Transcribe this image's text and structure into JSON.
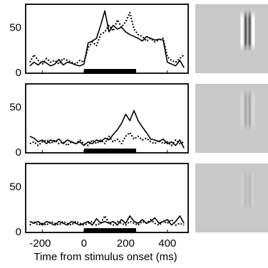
{
  "chart_data": [
    {
      "type": "line",
      "xlabel": "",
      "x_ticks": [
        -200,
        0,
        200,
        400
      ],
      "xlim": [
        -280,
        500
      ],
      "ylim": [
        0,
        75
      ],
      "y_ticks": [
        0,
        50
      ],
      "y_tick_labels": [
        "0",
        "50"
      ],
      "stimulus_bar": [
        0,
        250
      ],
      "series": [
        {
          "style": "solid",
          "points": [
            [
              -260,
              8
            ],
            [
              -240,
              12
            ],
            [
              -220,
              9
            ],
            [
              -200,
              13
            ],
            [
              -180,
              11
            ],
            [
              -160,
              8
            ],
            [
              -140,
              10
            ],
            [
              -120,
              15
            ],
            [
              -100,
              9
            ],
            [
              -80,
              12
            ],
            [
              -60,
              11
            ],
            [
              -40,
              9
            ],
            [
              -20,
              8
            ],
            [
              0,
              10
            ],
            [
              20,
              33
            ],
            [
              40,
              35
            ],
            [
              60,
              38
            ],
            [
              80,
              52
            ],
            [
              100,
              68
            ],
            [
              120,
              45
            ],
            [
              140,
              52
            ],
            [
              160,
              48
            ],
            [
              180,
              50
            ],
            [
              200,
              45
            ],
            [
              220,
              42
            ],
            [
              240,
              40
            ],
            [
              260,
              38
            ],
            [
              280,
              35
            ],
            [
              300,
              40
            ],
            [
              320,
              38
            ],
            [
              340,
              36
            ],
            [
              360,
              37
            ],
            [
              380,
              36
            ],
            [
              400,
              12
            ],
            [
              420,
              10
            ],
            [
              440,
              8
            ],
            [
              460,
              14
            ],
            [
              480,
              6
            ]
          ]
        },
        {
          "style": "dotted",
          "points": [
            [
              -260,
              12
            ],
            [
              -240,
              20
            ],
            [
              -220,
              14
            ],
            [
              -200,
              10
            ],
            [
              -180,
              16
            ],
            [
              -160,
              12
            ],
            [
              -140,
              14
            ],
            [
              -120,
              10
            ],
            [
              -100,
              16
            ],
            [
              -80,
              14
            ],
            [
              -60,
              12
            ],
            [
              -40,
              10
            ],
            [
              -20,
              14
            ],
            [
              0,
              12
            ],
            [
              20,
              28
            ],
            [
              40,
              34
            ],
            [
              60,
              30
            ],
            [
              80,
              42
            ],
            [
              100,
              45
            ],
            [
              120,
              52
            ],
            [
              140,
              46
            ],
            [
              160,
              58
            ],
            [
              180,
              50
            ],
            [
              200,
              56
            ],
            [
              220,
              66
            ],
            [
              240,
              48
            ],
            [
              260,
              42
            ],
            [
              280,
              40
            ],
            [
              300,
              35
            ],
            [
              320,
              38
            ],
            [
              340,
              34
            ],
            [
              360,
              36
            ],
            [
              380,
              38
            ],
            [
              400,
              18
            ],
            [
              420,
              14
            ],
            [
              440,
              12
            ],
            [
              460,
              16
            ],
            [
              480,
              20
            ]
          ]
        }
      ]
    },
    {
      "type": "line",
      "xlabel": "",
      "x_ticks": [
        -200,
        0,
        200,
        400
      ],
      "xlim": [
        -280,
        500
      ],
      "ylim": [
        0,
        75
      ],
      "y_ticks": [
        0,
        50
      ],
      "y_tick_labels": [
        "0",
        "50"
      ],
      "stimulus_bar": [
        0,
        250
      ],
      "series": [
        {
          "style": "solid",
          "points": [
            [
              -260,
              18
            ],
            [
              -240,
              16
            ],
            [
              -220,
              12
            ],
            [
              -200,
              14
            ],
            [
              -180,
              10
            ],
            [
              -160,
              14
            ],
            [
              -140,
              12
            ],
            [
              -120,
              15
            ],
            [
              -100,
              10
            ],
            [
              -80,
              14
            ],
            [
              -60,
              12
            ],
            [
              -40,
              10
            ],
            [
              -20,
              12
            ],
            [
              0,
              8
            ],
            [
              20,
              12
            ],
            [
              40,
              10
            ],
            [
              60,
              14
            ],
            [
              80,
              12
            ],
            [
              100,
              16
            ],
            [
              120,
              14
            ],
            [
              140,
              20
            ],
            [
              160,
              25
            ],
            [
              180,
              32
            ],
            [
              200,
              42
            ],
            [
              220,
              35
            ],
            [
              240,
              46
            ],
            [
              260,
              35
            ],
            [
              280,
              28
            ],
            [
              300,
              22
            ],
            [
              320,
              15
            ],
            [
              340,
              14
            ],
            [
              360,
              12
            ],
            [
              380,
              15
            ],
            [
              400,
              10
            ],
            [
              420,
              12
            ],
            [
              440,
              8
            ],
            [
              460,
              14
            ],
            [
              480,
              5
            ]
          ]
        },
        {
          "style": "dotted",
          "points": [
            [
              -260,
              10
            ],
            [
              -240,
              12
            ],
            [
              -220,
              8
            ],
            [
              -200,
              12
            ],
            [
              -180,
              14
            ],
            [
              -160,
              10
            ],
            [
              -140,
              14
            ],
            [
              -120,
              10
            ],
            [
              -100,
              12
            ],
            [
              -80,
              8
            ],
            [
              -60,
              12
            ],
            [
              -40,
              10
            ],
            [
              -20,
              14
            ],
            [
              0,
              10
            ],
            [
              20,
              8
            ],
            [
              40,
              14
            ],
            [
              60,
              10
            ],
            [
              80,
              14
            ],
            [
              100,
              10
            ],
            [
              120,
              18
            ],
            [
              140,
              12
            ],
            [
              160,
              15
            ],
            [
              180,
              10
            ],
            [
              200,
              18
            ],
            [
              220,
              22
            ],
            [
              240,
              15
            ],
            [
              260,
              18
            ],
            [
              280,
              14
            ],
            [
              300,
              16
            ],
            [
              320,
              12
            ],
            [
              340,
              10
            ],
            [
              360,
              14
            ],
            [
              380,
              10
            ],
            [
              400,
              12
            ],
            [
              420,
              8
            ],
            [
              440,
              14
            ],
            [
              460,
              10
            ],
            [
              480,
              12
            ]
          ]
        }
      ]
    },
    {
      "type": "line",
      "xlabel": "Time from stimulus onset (ms)",
      "x_ticks": [
        -200,
        0,
        200,
        400
      ],
      "x_tick_labels": [
        "-200",
        "0",
        "200",
        "400"
      ],
      "xlim": [
        -280,
        500
      ],
      "ylim": [
        0,
        75
      ],
      "y_ticks": [
        0,
        50
      ],
      "y_tick_labels": [
        "0",
        "50"
      ],
      "stimulus_bar": [
        0,
        250
      ],
      "series": [
        {
          "style": "solid",
          "points": [
            [
              -260,
              12
            ],
            [
              -240,
              10
            ],
            [
              -220,
              12
            ],
            [
              -200,
              8
            ],
            [
              -180,
              12
            ],
            [
              -160,
              10
            ],
            [
              -140,
              8
            ],
            [
              -120,
              12
            ],
            [
              -100,
              10
            ],
            [
              -80,
              8
            ],
            [
              -60,
              12
            ],
            [
              -40,
              10
            ],
            [
              -20,
              8
            ],
            [
              0,
              10
            ],
            [
              20,
              12
            ],
            [
              40,
              8
            ],
            [
              60,
              15
            ],
            [
              80,
              10
            ],
            [
              100,
              12
            ],
            [
              120,
              10
            ],
            [
              140,
              12
            ],
            [
              160,
              8
            ],
            [
              180,
              14
            ],
            [
              200,
              10
            ],
            [
              220,
              18
            ],
            [
              240,
              12
            ],
            [
              260,
              10
            ],
            [
              280,
              14
            ],
            [
              300,
              10
            ],
            [
              320,
              12
            ],
            [
              340,
              16
            ],
            [
              360,
              10
            ],
            [
              380,
              12
            ],
            [
              400,
              14
            ],
            [
              420,
              8
            ],
            [
              440,
              12
            ],
            [
              460,
              18
            ],
            [
              480,
              10
            ]
          ]
        },
        {
          "style": "dotted",
          "points": [
            [
              -260,
              8
            ],
            [
              -240,
              12
            ],
            [
              -220,
              8
            ],
            [
              -200,
              10
            ],
            [
              -180,
              8
            ],
            [
              -160,
              12
            ],
            [
              -140,
              10
            ],
            [
              -120,
              8
            ],
            [
              -100,
              12
            ],
            [
              -80,
              10
            ],
            [
              -60,
              8
            ],
            [
              -40,
              12
            ],
            [
              -20,
              10
            ],
            [
              0,
              8
            ],
            [
              20,
              10
            ],
            [
              40,
              12
            ],
            [
              60,
              8
            ],
            [
              80,
              10
            ],
            [
              100,
              18
            ],
            [
              120,
              10
            ],
            [
              140,
              8
            ],
            [
              160,
              12
            ],
            [
              180,
              10
            ],
            [
              200,
              8
            ],
            [
              220,
              12
            ],
            [
              240,
              10
            ],
            [
              260,
              8
            ],
            [
              280,
              12
            ],
            [
              300,
              10
            ],
            [
              320,
              14
            ],
            [
              340,
              10
            ],
            [
              360,
              8
            ],
            [
              380,
              12
            ],
            [
              400,
              10
            ],
            [
              420,
              14
            ],
            [
              440,
              8
            ],
            [
              460,
              10
            ],
            [
              480,
              8
            ]
          ]
        }
      ]
    }
  ],
  "stimuli": [
    {
      "contrast": 1.0
    },
    {
      "contrast": 0.3
    },
    {
      "contrast": 0.12
    }
  ],
  "colors": {
    "line": "#000000",
    "stimulus_background": "#c8c8c8"
  }
}
